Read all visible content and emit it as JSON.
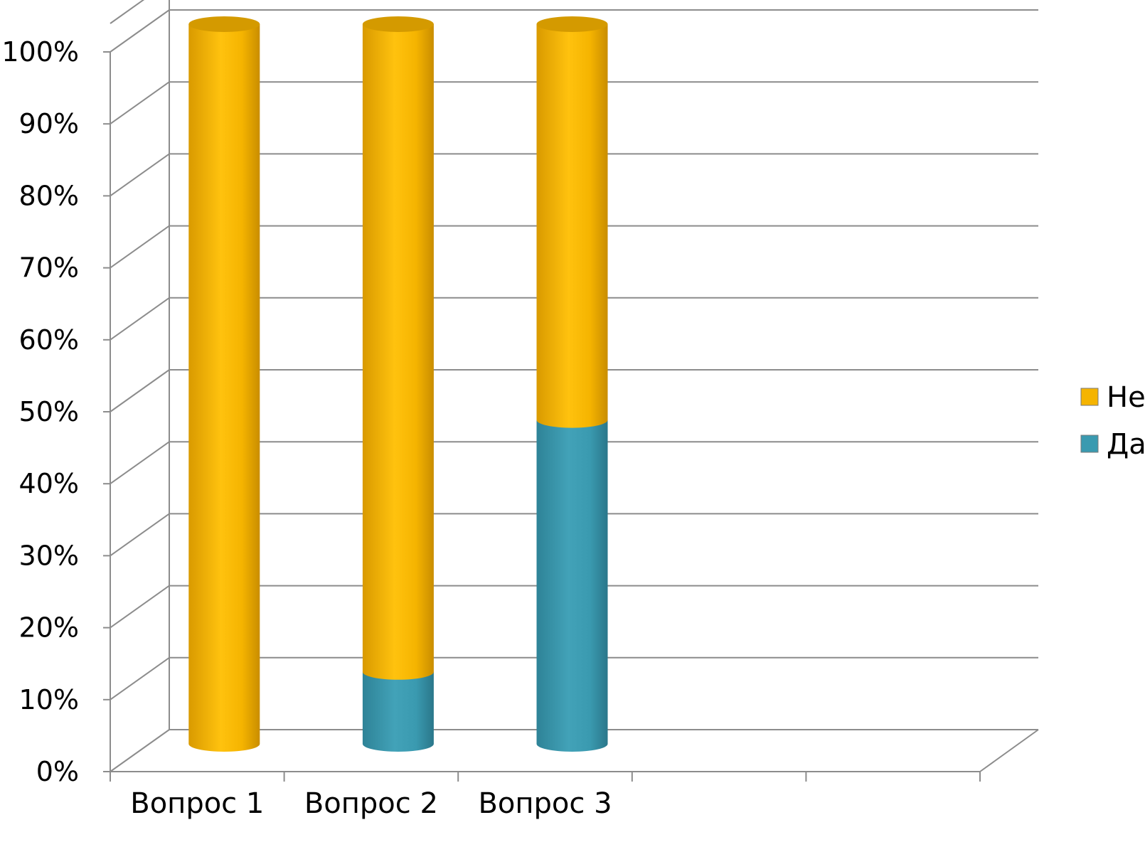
{
  "chart_data": {
    "type": "bar",
    "subtype": "stacked-percent-cylinder-3d",
    "categories": [
      "Вопрос 1",
      "Вопрос 2",
      "Вопрос 3",
      "",
      ""
    ],
    "series": [
      {
        "name": "Да",
        "values": [
          0,
          10,
          45,
          null,
          null
        ],
        "color": "#3A9AB0"
      },
      {
        "name": "Не",
        "values": [
          100,
          90,
          55,
          null,
          null
        ],
        "color": "#F5B400"
      }
    ],
    "y_ticks": [
      "0%",
      "10%",
      "20%",
      "30%",
      "40%",
      "50%",
      "60%",
      "70%",
      "80%",
      "90%",
      "100%"
    ],
    "ylim": [
      0,
      100
    ],
    "grid": true,
    "legend": "right",
    "legend_order": [
      "Не",
      "Да"
    ],
    "title": "",
    "xlabel": "",
    "ylabel": ""
  }
}
